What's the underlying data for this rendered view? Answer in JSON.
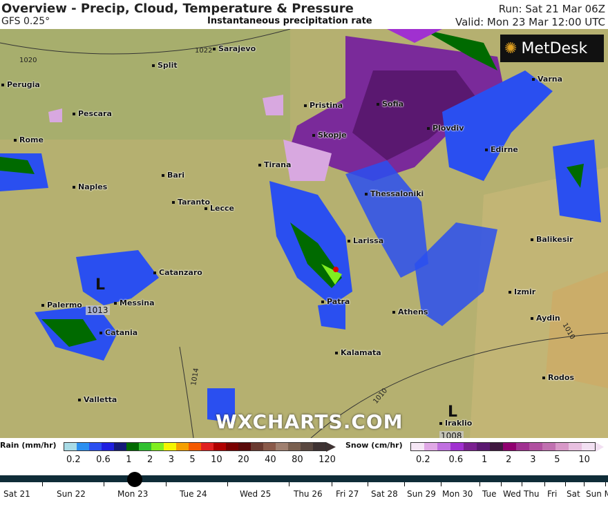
{
  "header": {
    "title": "Overview - Precip, Cloud, Temperature & Pressure",
    "model": "GFS 0.25°",
    "subtitle": "Instantaneous precipitation rate",
    "run": "Run: Sat 21 Mar 06Z",
    "valid": "Valid: Mon 23 Mar 12:00 UTC"
  },
  "logo": "MetDesk",
  "watermark": "WXCHARTS.COM",
  "cities": [
    "Sarajevo",
    "Split",
    "Perugia",
    "Pescara",
    "Rome",
    "Pristina",
    "Sofia",
    "Plovdiv",
    "Varna",
    "Skopje",
    "Edirne",
    "Tirana",
    "Bari",
    "Naples",
    "Thessaloniki",
    "Taranto",
    "Lecce",
    "Larissa",
    "Balikesir",
    "Catanzaro",
    "Izmir",
    "Messina",
    "Palermo",
    "Patra",
    "Athens",
    "Aydin",
    "Catania",
    "Kalamata",
    "Rodos",
    "Valletta",
    "Iraklio"
  ],
  "isobars": [
    "1022",
    "1020",
    "1014",
    "1010",
    "1010"
  ],
  "lows": [
    {
      "label": "L",
      "value": "1013"
    },
    {
      "label": "L",
      "value": "1008"
    }
  ],
  "legend": {
    "rain_label": "Rain (mm/hr)",
    "rain_ticks": [
      "0.2",
      "0.6",
      "1",
      "2",
      "3",
      "5",
      "10",
      "20",
      "40",
      "80",
      "120"
    ],
    "rain_colors": [
      "#a8dbe6",
      "#2b8ff0",
      "#2a4ff0",
      "#1f1fe0",
      "#151a78",
      "#006a00",
      "#30c030",
      "#80ee20",
      "#f5f500",
      "#f5a000",
      "#f55a00",
      "#e02020",
      "#b00000",
      "#7a0000",
      "#5a0a0a",
      "#6a3a30",
      "#8a5a4a",
      "#a08070",
      "#7a6050",
      "#5a4840",
      "#3e3232"
    ],
    "snow_label": "Snow (cm/hr)",
    "snow_ticks": [
      "0.2",
      "0.6",
      "1",
      "2",
      "3",
      "5",
      "10"
    ],
    "snow_colors": [
      "#f5e6f5",
      "#e0a8e6",
      "#c070e0",
      "#a030d0",
      "#7a2090",
      "#5a1870",
      "#401840",
      "#900070",
      "#a03090",
      "#b050a0",
      "#c070b0",
      "#d898c8",
      "#e8c0e0",
      "#f2e0f2"
    ]
  },
  "timeline": {
    "days": [
      "Sat 21",
      "Sun 22",
      "Mon 23",
      "Tue 24",
      "Wed 25",
      "Thu 26",
      "Fri 27",
      "Sat 28",
      "Sun 29",
      "Mon 30",
      "Tue",
      "Wed",
      "Thu",
      "Fri",
      "Sat",
      "Sun M"
    ],
    "current": "Mon 23"
  }
}
